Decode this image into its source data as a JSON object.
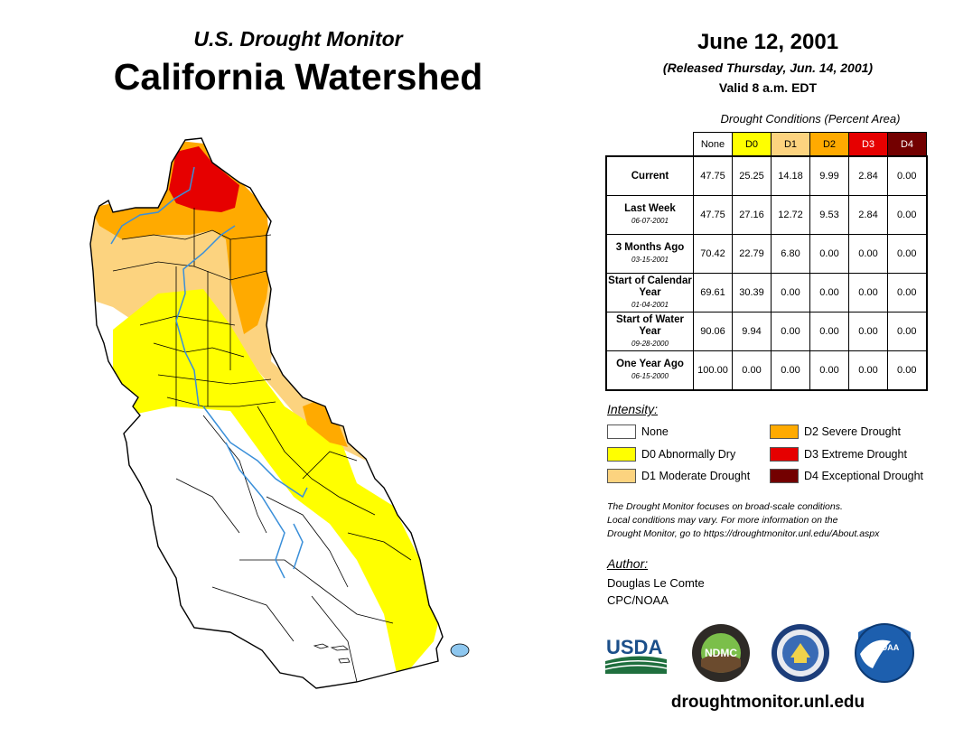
{
  "header": {
    "subtitle": "U.S. Drought Monitor",
    "title": "California Watershed",
    "date": "June 12, 2001",
    "released": "(Released Thursday, Jun. 14, 2001)",
    "valid": "Valid 8 a.m. EDT"
  },
  "table": {
    "title": "Drought Conditions (Percent Area)",
    "columns": [
      "None",
      "D0",
      "D1",
      "D2",
      "D3",
      "D4"
    ],
    "column_colors": [
      "#ffffff",
      "#ffff00",
      "#fcd37f",
      "#ffaa00",
      "#e60000",
      "#730000"
    ],
    "rows": [
      {
        "label": "Current",
        "date": "",
        "values": [
          "47.75",
          "25.25",
          "14.18",
          "9.99",
          "2.84",
          "0.00"
        ]
      },
      {
        "label": "Last Week",
        "date": "06-07-2001",
        "values": [
          "47.75",
          "27.16",
          "12.72",
          "9.53",
          "2.84",
          "0.00"
        ]
      },
      {
        "label": "3 Months Ago",
        "date": "03-15-2001",
        "values": [
          "70.42",
          "22.79",
          "6.80",
          "0.00",
          "0.00",
          "0.00"
        ]
      },
      {
        "label": "Start of Calendar Year",
        "date": "01-04-2001",
        "values": [
          "69.61",
          "30.39",
          "0.00",
          "0.00",
          "0.00",
          "0.00"
        ]
      },
      {
        "label": "Start of Water Year",
        "date": "09-28-2000",
        "values": [
          "90.06",
          "9.94",
          "0.00",
          "0.00",
          "0.00",
          "0.00"
        ]
      },
      {
        "label": "One Year Ago",
        "date": "06-15-2000",
        "values": [
          "100.00",
          "0.00",
          "0.00",
          "0.00",
          "0.00",
          "0.00"
        ]
      }
    ]
  },
  "legend": {
    "title": "Intensity:",
    "items": [
      {
        "label": "None",
        "color": "#ffffff"
      },
      {
        "label": "D0 Abnormally Dry",
        "color": "#ffff00"
      },
      {
        "label": "D1 Moderate Drought",
        "color": "#fcd37f"
      },
      {
        "label": "D2 Severe Drought",
        "color": "#ffaa00"
      },
      {
        "label": "D3 Extreme Drought",
        "color": "#e60000"
      },
      {
        "label": "D4 Exceptional Drought",
        "color": "#730000"
      }
    ]
  },
  "note": [
    "The Drought Monitor focuses on broad-scale conditions.",
    "Local conditions may vary. For more information on the",
    "Drought Monitor, go to https://droughtmonitor.unl.edu/About.aspx"
  ],
  "author": {
    "label": "Author:",
    "name": "Douglas Le Comte",
    "org": "CPC/NOAA"
  },
  "logos": {
    "usda": "USDA",
    "ndmc": "NDMC",
    "noaa": "NOAA"
  },
  "footer": {
    "url": "droughtmonitor.unl.edu"
  }
}
